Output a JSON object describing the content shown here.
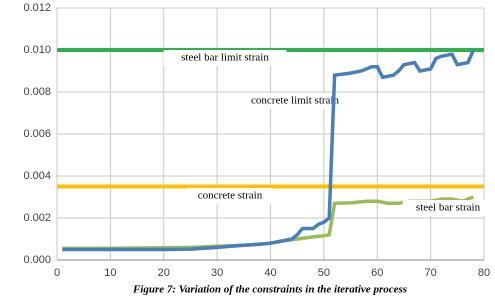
{
  "chart_data": {
    "type": "line",
    "caption": "Figure 7: Variation of the constraints in the iterative process",
    "xlim": [
      0,
      80
    ],
    "xticks": [
      0,
      10,
      20,
      30,
      40,
      50,
      60,
      70,
      80
    ],
    "ylim": [
      0,
      0.012
    ],
    "yticks": [
      {
        "value": 0,
        "label": "0.000"
      },
      {
        "value": 0.002,
        "label": "0.002"
      },
      {
        "value": 0.004,
        "label": "0.004"
      },
      {
        "value": 0.006,
        "label": "0.006"
      },
      {
        "value": 0.008,
        "label": "0.008"
      },
      {
        "value": 0.01,
        "label": "0.010"
      },
      {
        "value": 0.012,
        "label": "0.012"
      }
    ],
    "grid": true,
    "series": [
      {
        "name": "steel bar limit strain",
        "color": "#2fb24c",
        "x": [
          0,
          80
        ],
        "values": [
          0.01,
          0.01
        ]
      },
      {
        "name": "concrete limit strain",
        "color": "#ffc000",
        "x": [
          0,
          80
        ],
        "values": [
          0.0035,
          0.0035
        ]
      },
      {
        "name": "concrete strain",
        "color": "#9bbb59",
        "x": [
          1,
          10,
          20,
          25,
          30,
          35,
          40,
          42,
          45,
          48,
          50,
          51,
          52,
          55,
          58,
          60,
          62,
          64,
          66,
          68,
          70,
          72,
          74,
          76,
          78
        ],
        "values": [
          0.00055,
          0.00056,
          0.00058,
          0.0006,
          0.00065,
          0.0007,
          0.0008,
          0.0009,
          0.001,
          0.0011,
          0.00115,
          0.0012,
          0.0027,
          0.00272,
          0.0028,
          0.0028,
          0.0027,
          0.0027,
          0.0028,
          0.0028,
          0.0028,
          0.0029,
          0.0029,
          0.0028,
          0.003
        ]
      },
      {
        "name": "steel bar strain",
        "color": "#4a7ebb",
        "x": [
          1,
          10,
          20,
          25,
          30,
          35,
          38,
          40,
          42,
          44,
          45,
          46,
          48,
          49,
          50,
          51,
          52,
          55,
          57,
          59,
          60,
          61,
          63,
          64,
          65,
          67,
          68,
          70,
          71,
          72,
          74,
          75,
          77,
          78
        ],
        "values": [
          0.0005,
          0.0005,
          0.0005,
          0.00052,
          0.0006,
          0.0007,
          0.00075,
          0.0008,
          0.0009,
          0.001,
          0.0012,
          0.0015,
          0.0015,
          0.0017,
          0.0018,
          0.002,
          0.0088,
          0.0089,
          0.009,
          0.0092,
          0.0092,
          0.0087,
          0.0088,
          0.009,
          0.0093,
          0.0094,
          0.009,
          0.0091,
          0.0096,
          0.0097,
          0.0098,
          0.0093,
          0.0094,
          0.01
        ]
      }
    ]
  }
}
